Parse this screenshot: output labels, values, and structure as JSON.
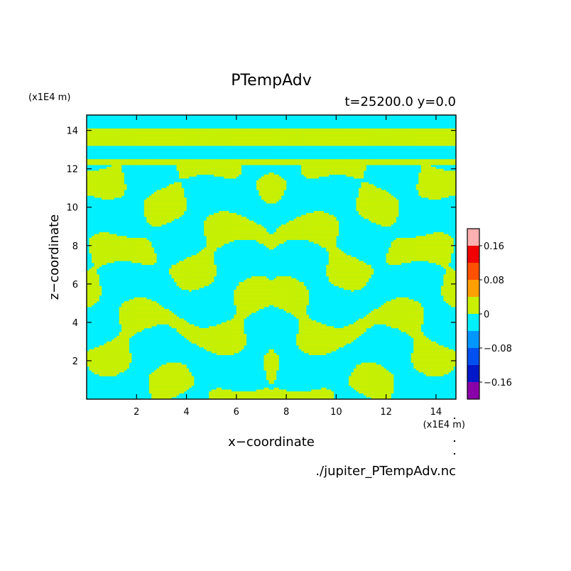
{
  "chart_data": {
    "type": "heatmap",
    "title": "PTempAdv",
    "subtitle": "t=25200.0 y=0.0",
    "xlabel": "x−coordinate",
    "ylabel": "z−coordinate",
    "x_unit": "(x1E4 m)",
    "y_unit": "(x1E4 m)",
    "source_file": "./jupiter_PTempAdv.nc",
    "xlim": [
      0,
      14.8
    ],
    "ylim": [
      0,
      14.8
    ],
    "x_ticks": [
      {
        "value": 2,
        "label": "2"
      },
      {
        "value": 4,
        "label": "4"
      },
      {
        "value": 6,
        "label": "6"
      },
      {
        "value": 8,
        "label": "8"
      },
      {
        "value": 10,
        "label": "10"
      },
      {
        "value": 12,
        "label": "12"
      },
      {
        "value": 14,
        "label": "14"
      }
    ],
    "y_ticks": [
      {
        "value": 2,
        "label": "2"
      },
      {
        "value": 4,
        "label": "4"
      },
      {
        "value": 6,
        "label": "6"
      },
      {
        "value": 8,
        "label": "8"
      },
      {
        "value": 10,
        "label": "10"
      },
      {
        "value": 12,
        "label": "12"
      },
      {
        "value": 14,
        "label": "14"
      }
    ],
    "colorbar": {
      "levels": [
        -0.2,
        -0.16,
        -0.12,
        -0.08,
        -0.04,
        0,
        0.04,
        0.08,
        0.12,
        0.16,
        0.2
      ],
      "colors": [
        "#8a00a8",
        "#0018c8",
        "#0050f0",
        "#0096ff",
        "#00f0ff",
        "#c8f000",
        "#ffa000",
        "#ff5000",
        "#f00000",
        "#ffb0b0"
      ],
      "tick_labels": [
        {
          "value": -0.16,
          "label": "−0.16"
        },
        {
          "value": -0.08,
          "label": "−0.08"
        },
        {
          "value": 0,
          "label": "0"
        },
        {
          "value": 0.08,
          "label": "0.08"
        },
        {
          "value": 0.16,
          "label": "0.16"
        }
      ]
    },
    "field_colors": {
      "negative_small": "#00f0ff",
      "positive_small": "#c8f000"
    },
    "symmetry": "mirror about x = 7.4",
    "bands": [
      {
        "z": [
          13.2,
          14.1
        ],
        "sign": "positive"
      },
      {
        "z": [
          12.5,
          13.2
        ],
        "sign": "negative"
      },
      {
        "z": [
          12.2,
          12.5
        ],
        "sign": "positive"
      }
    ]
  }
}
